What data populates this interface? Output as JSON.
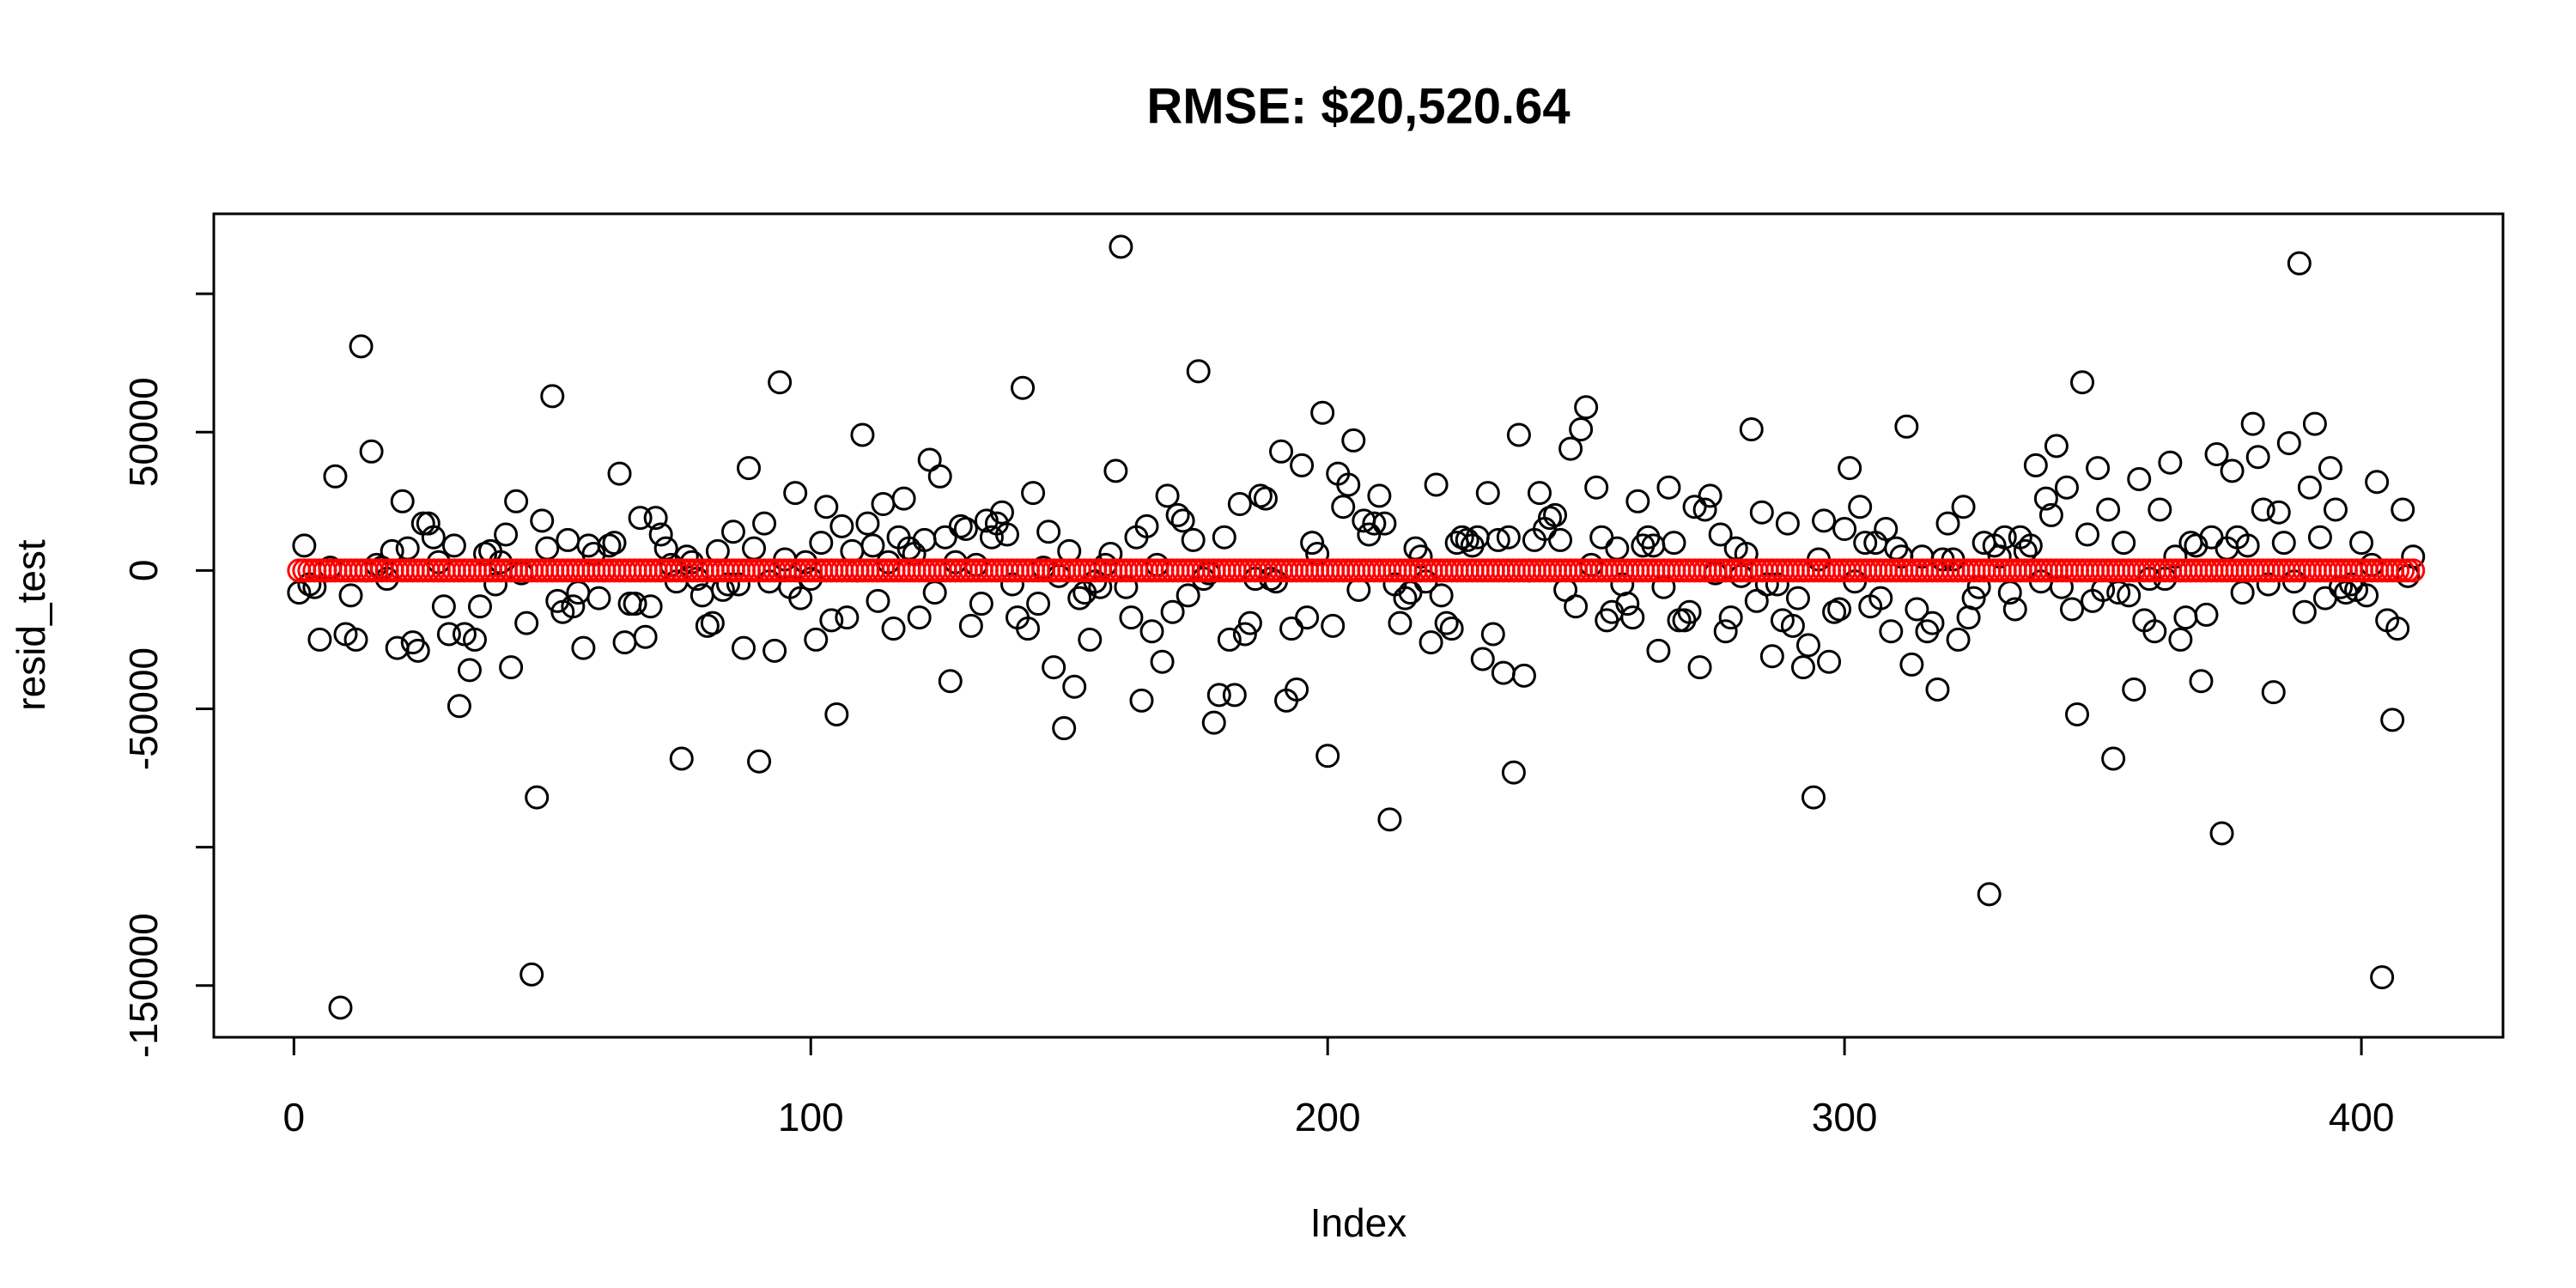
{
  "chart_data": {
    "type": "scatter",
    "title": "RMSE: $20,520.64",
    "x_label": "Index",
    "y_label": "resid_test",
    "xlim": [
      -15.5,
      427.4
    ],
    "xticks": [
      0,
      100,
      200,
      300,
      400
    ],
    "ylim": [
      -168700,
      128900
    ],
    "yticks": [
      -150000,
      {
        "value": -100000,
        "label": null
      },
      -50000,
      0,
      50000,
      {
        "value": 100000,
        "label": null
      }
    ],
    "x": [
      1,
      2,
      3,
      4,
      5,
      6,
      7,
      8,
      9,
      10,
      11,
      12,
      13,
      14,
      15,
      16,
      17,
      18,
      19,
      20,
      21,
      22,
      23,
      24,
      25,
      26,
      27,
      28,
      29,
      30,
      31,
      32,
      33,
      34,
      35,
      36,
      37,
      38,
      39,
      40,
      41,
      42,
      43,
      44,
      45,
      46,
      47,
      48,
      49,
      50,
      51,
      52,
      53,
      54,
      55,
      56,
      57,
      58,
      59,
      60,
      61,
      62,
      63,
      64,
      65,
      66,
      67,
      68,
      69,
      70,
      71,
      72,
      73,
      74,
      75,
      76,
      77,
      78,
      79,
      80,
      81,
      82,
      83,
      84,
      85,
      86,
      87,
      88,
      89,
      90,
      91,
      92,
      93,
      94,
      95,
      96,
      97,
      98,
      99,
      100,
      101,
      102,
      103,
      104,
      105,
      106,
      107,
      108,
      109,
      110,
      111,
      112,
      113,
      114,
      115,
      116,
      117,
      118,
      119,
      120,
      121,
      122,
      123,
      124,
      125,
      126,
      127,
      128,
      129,
      130,
      131,
      132,
      133,
      134,
      135,
      136,
      137,
      138,
      139,
      140,
      141,
      142,
      143,
      144,
      145,
      146,
      147,
      148,
      149,
      150,
      151,
      152,
      153,
      154,
      155,
      156,
      157,
      158,
      159,
      160,
      161,
      162,
      163,
      164,
      165,
      166,
      167,
      168,
      169,
      170,
      171,
      172,
      173,
      174,
      175,
      176,
      177,
      178,
      179,
      180,
      181,
      182,
      183,
      184,
      185,
      186,
      187,
      188,
      189,
      190,
      191,
      192,
      193,
      194,
      195,
      196,
      197,
      198,
      199,
      200,
      201,
      202,
      203,
      204,
      205,
      206,
      207,
      208,
      209,
      210,
      211,
      212,
      213,
      214,
      215,
      216,
      217,
      218,
      219,
      220,
      221,
      222,
      223,
      224,
      225,
      226,
      227,
      228,
      229,
      230,
      231,
      232,
      233,
      234,
      235,
      236,
      237,
      238,
      239,
      240,
      241,
      242,
      243,
      244,
      245,
      246,
      247,
      248,
      249,
      250,
      251,
      252,
      253,
      254,
      255,
      256,
      257,
      258,
      259,
      260,
      261,
      262,
      263,
      264,
      265,
      266,
      267,
      268,
      269,
      270,
      271,
      272,
      273,
      274,
      275,
      276,
      277,
      278,
      279,
      280,
      281,
      282,
      283,
      284,
      285,
      286,
      287,
      288,
      289,
      290,
      291,
      292,
      293,
      294,
      295,
      296,
      297,
      298,
      299,
      300,
      301,
      302,
      303,
      304,
      305,
      306,
      307,
      308,
      309,
      310,
      311,
      312,
      313,
      314,
      315,
      316,
      317,
      318,
      319,
      320,
      321,
      322,
      323,
      324,
      325,
      326,
      327,
      328,
      329,
      330,
      331,
      332,
      333,
      334,
      335,
      336,
      337,
      338,
      339,
      340,
      341,
      342,
      343,
      344,
      345,
      346,
      347,
      348,
      349,
      350,
      351,
      352,
      353,
      354,
      355,
      356,
      357,
      358,
      359,
      360,
      361,
      362,
      363,
      364,
      365,
      366,
      367,
      368,
      369,
      370,
      371,
      372,
      373,
      374,
      375,
      376,
      377,
      378,
      379,
      380,
      381,
      382,
      383,
      384,
      385,
      386,
      387,
      388,
      389,
      390,
      391,
      392,
      393,
      394,
      395,
      396,
      397,
      398,
      399,
      400,
      401,
      402,
      403,
      404,
      405,
      406,
      407,
      408,
      409,
      410
    ],
    "series": [
      {
        "color": "#000000",
        "values": [
          -8000,
          9000,
          -5000,
          -6000,
          -25000,
          0,
          1000,
          34000,
          -158000,
          -23000,
          -9000,
          -25000,
          81000,
          0,
          43000,
          2000,
          1000,
          -3000,
          7000,
          -28000,
          25000,
          8000,
          -26000,
          -29000,
          17000,
          17000,
          12000,
          3000,
          -13000,
          -23000,
          9000,
          -49000,
          -23000,
          -36000,
          -25000,
          -13000,
          6000,
          7000,
          -5000,
          3000,
          13000,
          -35000,
          25000,
          -1000,
          -19000,
          -146000,
          -82000,
          18000,
          8000,
          63000,
          -11000,
          -15000,
          11000,
          -13000,
          -8000,
          -28000,
          9000,
          6000,
          -10000,
          0,
          9000,
          10000,
          35000,
          -26000,
          -12000,
          -12000,
          19000,
          -24000,
          -13000,
          19000,
          13000,
          8000,
          2000,
          -4000,
          -68000,
          5000,
          3000,
          -3000,
          -9000,
          -20000,
          -19000,
          7000,
          -7000,
          -5000,
          14000,
          -5000,
          -28000,
          37000,
          8000,
          -69000,
          17000,
          -4000,
          -29000,
          68000,
          4000,
          -6000,
          28000,
          -10000,
          3000,
          -3000,
          -25000,
          10000,
          23000,
          -18000,
          -52000,
          16000,
          -17000,
          7000,
          0,
          49000,
          17000,
          9000,
          -11000,
          24000,
          3000,
          -21000,
          12000,
          26000,
          8000,
          6000,
          -17000,
          11000,
          40000,
          -8000,
          34000,
          12000,
          -40000,
          3000,
          16000,
          15000,
          -20000,
          2000,
          -12000,
          18000,
          12000,
          17000,
          21000,
          13000,
          -5000,
          -17000,
          66000,
          -21000,
          28000,
          -12000,
          1000,
          14000,
          -35000,
          -2000,
          -57000,
          7000,
          -42000,
          -10000,
          -8000,
          -25000,
          -4000,
          -6000,
          2000,
          6000,
          36000,
          117000,
          -6000,
          -17000,
          12000,
          -47000,
          16000,
          -22000,
          2000,
          -33000,
          27000,
          -15000,
          20000,
          18000,
          -9000,
          11000,
          72000,
          -3000,
          -1000,
          -55000,
          -45000,
          12000,
          -25000,
          -45000,
          24000,
          -23000,
          -19000,
          -3000,
          27000,
          26000,
          -3000,
          -4000,
          43000,
          -47000,
          -21000,
          -43000,
          38000,
          -17000,
          10000,
          6000,
          57000,
          -67000,
          -20000,
          35000,
          23000,
          31000,
          47000,
          -7000,
          18000,
          13000,
          17000,
          27000,
          17000,
          -90000,
          -5000,
          -19000,
          -10000,
          -8000,
          8000,
          5000,
          -4000,
          -26000,
          31000,
          -9000,
          -19000,
          -21000,
          10000,
          12000,
          11000,
          9000,
          12000,
          -32000,
          28000,
          -23000,
          11000,
          -37000,
          12000,
          -73000,
          49000,
          -38000,
          0,
          11000,
          28000,
          15000,
          19000,
          20000,
          11000,
          -7000,
          44000,
          -13000,
          51000,
          59000,
          2000,
          30000,
          12000,
          -18000,
          -15000,
          8000,
          -5000,
          -12000,
          -17000,
          25000,
          9000,
          12000,
          9000,
          -29000,
          -6000,
          30000,
          10000,
          -18000,
          -18000,
          -15000,
          23000,
          -35000,
          22000,
          27000,
          -1000,
          13000,
          -22000,
          -17000,
          8000,
          -2000,
          6000,
          51000,
          -11000,
          21000,
          -5000,
          -31000,
          -5000,
          -18000,
          17000,
          -20000,
          -10000,
          -35000,
          -27000,
          -82000,
          4000,
          18000,
          -33000,
          -15000,
          -14000,
          15000,
          37000,
          -4000,
          23000,
          10000,
          -13000,
          10000,
          -10000,
          15000,
          -22000,
          8000,
          5000,
          52000,
          -34000,
          -14000,
          5000,
          -22000,
          -19000,
          -43000,
          4000,
          17000,
          4000,
          -25000,
          23000,
          -17000,
          -10000,
          -6000,
          10000,
          -117000,
          9000,
          5000,
          12000,
          -8000,
          -14000,
          12000,
          7000,
          9000,
          38000,
          -4000,
          26000,
          20000,
          45000,
          -6000,
          30000,
          -14000,
          -52000,
          68000,
          13000,
          -11000,
          37000,
          -7000,
          22000,
          -68000,
          -8000,
          10000,
          -9000,
          -43000,
          33000,
          -18000,
          -3000,
          -22000,
          22000,
          -3000,
          39000,
          5000,
          -25000,
          -17000,
          10000,
          9000,
          -40000,
          -16000,
          12000,
          42000,
          -95000,
          8000,
          36000,
          12000,
          -8000,
          9000,
          53000,
          41000,
          22000,
          -5000,
          -44000,
          21000,
          10000,
          46000,
          -4000,
          111000,
          -15000,
          30000,
          53000,
          12000,
          -10000,
          37000,
          22000,
          -6000,
          -8000,
          -5000,
          -7000,
          10000,
          -9000,
          2000,
          32000,
          -147000,
          -18000,
          -54000,
          -21000,
          22000,
          -2000,
          5000
        ]
      },
      {
        "color": "#ff0000",
        "values": [
          0,
          0,
          0,
          0,
          0,
          0,
          0,
          0,
          0,
          0,
          0,
          0,
          0,
          0,
          0,
          0,
          0,
          0,
          0,
          0,
          0,
          0,
          0,
          0,
          0,
          0,
          0,
          0,
          0,
          0,
          0,
          0,
          0,
          0,
          0,
          0,
          0,
          0,
          0,
          0,
          0,
          0,
          0,
          0,
          0,
          0,
          0,
          0,
          0,
          0,
          0,
          0,
          0,
          0,
          0,
          0,
          0,
          0,
          0,
          0,
          0,
          0,
          0,
          0,
          0,
          0,
          0,
          0,
          0,
          0,
          0,
          0,
          0,
          0,
          0,
          0,
          0,
          0,
          0,
          0,
          0,
          0,
          0,
          0,
          0,
          0,
          0,
          0,
          0,
          0,
          0,
          0,
          0,
          0,
          0,
          0,
          0,
          0,
          0,
          0,
          0,
          0,
          0,
          0,
          0,
          0,
          0,
          0,
          0,
          0,
          0,
          0,
          0,
          0,
          0,
          0,
          0,
          0,
          0,
          0,
          0,
          0,
          0,
          0,
          0,
          0,
          0,
          0,
          0,
          0,
          0,
          0,
          0,
          0,
          0,
          0,
          0,
          0,
          0,
          0,
          0,
          0,
          0,
          0,
          0,
          0,
          0,
          0,
          0,
          0,
          0,
          0,
          0,
          0,
          0,
          0,
          0,
          0,
          0,
          0,
          0,
          0,
          0,
          0,
          0,
          0,
          0,
          0,
          0,
          0,
          0,
          0,
          0,
          0,
          0,
          0,
          0,
          0,
          0,
          0,
          0,
          0,
          0,
          0,
          0,
          0,
          0,
          0,
          0,
          0,
          0,
          0,
          0,
          0,
          0,
          0,
          0,
          0,
          0,
          0,
          0,
          0,
          0,
          0,
          0,
          0,
          0,
          0,
          0,
          0,
          0,
          0,
          0,
          0,
          0,
          0,
          0,
          0,
          0,
          0,
          0,
          0,
          0,
          0,
          0,
          0,
          0,
          0,
          0,
          0,
          0,
          0,
          0,
          0,
          0,
          0,
          0,
          0,
          0,
          0,
          0,
          0,
          0,
          0,
          0,
          0,
          0,
          0,
          0,
          0,
          0,
          0,
          0,
          0,
          0,
          0,
          0,
          0,
          0,
          0,
          0,
          0,
          0,
          0,
          0,
          0,
          0,
          0,
          0,
          0,
          0,
          0,
          0,
          0,
          0,
          0,
          0,
          0,
          0,
          0,
          0,
          0,
          0,
          0,
          0,
          0,
          0,
          0,
          0,
          0,
          0,
          0,
          0,
          0,
          0,
          0,
          0,
          0,
          0,
          0,
          0,
          0,
          0,
          0,
          0,
          0,
          0,
          0,
          0,
          0,
          0,
          0,
          0,
          0,
          0,
          0,
          0,
          0,
          0,
          0,
          0,
          0,
          0,
          0,
          0,
          0,
          0,
          0,
          0,
          0,
          0,
          0,
          0,
          0,
          0,
          0,
          0,
          0,
          0,
          0,
          0,
          0,
          0,
          0,
          0,
          0,
          0,
          0,
          0,
          0,
          0,
          0,
          0,
          0,
          0,
          0,
          0,
          0,
          0,
          0,
          0,
          0,
          0,
          0,
          0,
          0,
          0,
          0,
          0,
          0,
          0,
          0,
          0,
          0,
          0,
          0,
          0,
          0,
          0,
          0,
          0,
          0,
          0,
          0,
          0,
          0,
          0,
          0,
          0,
          0,
          0,
          0,
          0,
          0,
          0,
          0,
          0,
          0,
          0,
          0,
          0,
          0,
          0,
          0,
          0,
          0,
          0,
          0,
          0,
          0
        ]
      }
    ]
  }
}
